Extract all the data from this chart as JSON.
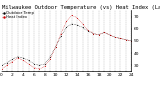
{
  "title": "Milwaukee Outdoor Temperature (vs) Heat Index (Last 24 Hours)",
  "background_color": "#ffffff",
  "plot_bg_color": "#ffffff",
  "grid_color": "#888888",
  "temp_color": "#000000",
  "heat_color": "#cc0000",
  "ylim": [
    25,
    75
  ],
  "yticks": [
    30,
    40,
    50,
    60,
    70
  ],
  "hours": [
    0,
    1,
    2,
    3,
    4,
    5,
    6,
    7,
    8,
    9,
    10,
    11,
    12,
    13,
    14,
    15,
    16,
    17,
    18,
    19,
    20,
    21,
    22,
    23,
    24
  ],
  "temperature": [
    30,
    32,
    35,
    37,
    36,
    34,
    31,
    30,
    31,
    37,
    45,
    54,
    61,
    64,
    63,
    61,
    58,
    56,
    55,
    57,
    55,
    53,
    52,
    51,
    50
  ],
  "heat_index": [
    27,
    30,
    33,
    36,
    34,
    31,
    28,
    27,
    29,
    35,
    45,
    56,
    66,
    71,
    69,
    64,
    59,
    56,
    55,
    57,
    55,
    53,
    52,
    51,
    50
  ],
  "title_fontsize": 4.0,
  "tick_fontsize": 3.2,
  "legend_fontsize": 2.8,
  "legend_items": [
    "Outdoor Temp",
    "Heat Index"
  ],
  "legend_colors": [
    "#000000",
    "#cc0000"
  ],
  "marker_size": 1.2,
  "linewidth": 0.4
}
